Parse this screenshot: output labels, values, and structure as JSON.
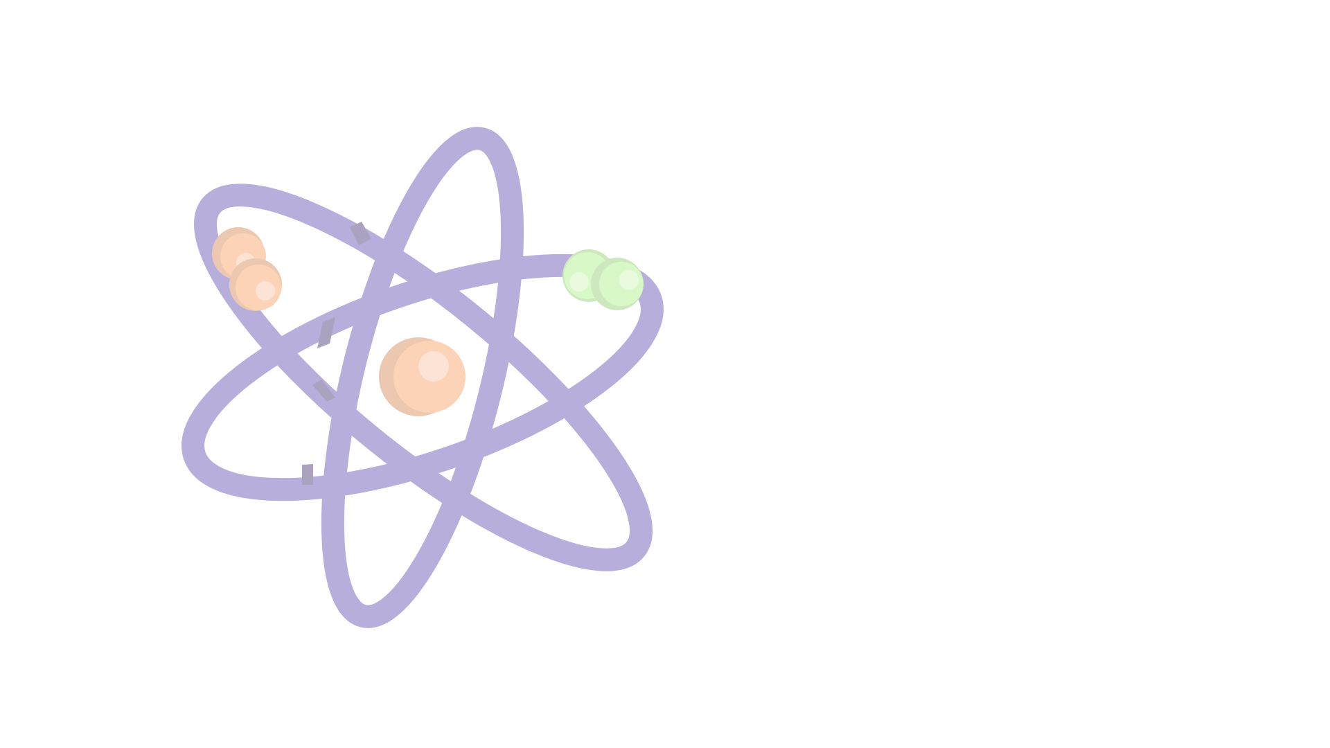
{
  "illustration": {
    "icon": "atom-icon",
    "colors": {
      "orbit": "#B7AEDC",
      "orbit_shadow": "#ABA2C0",
      "nucleus": "#FCD3B6",
      "nucleus_shade": "#EDC8B0",
      "nucleus_highlight": "#FDE3D6",
      "electron_orange": "#FCD3B6",
      "electron_orange_highlight": "#FDE3D6",
      "electron_green": "#D8F8C8",
      "electron_green_shade": "#CDE8BE",
      "electron_green_highlight": "#EAFADF",
      "background": "#FFFFFF"
    }
  }
}
